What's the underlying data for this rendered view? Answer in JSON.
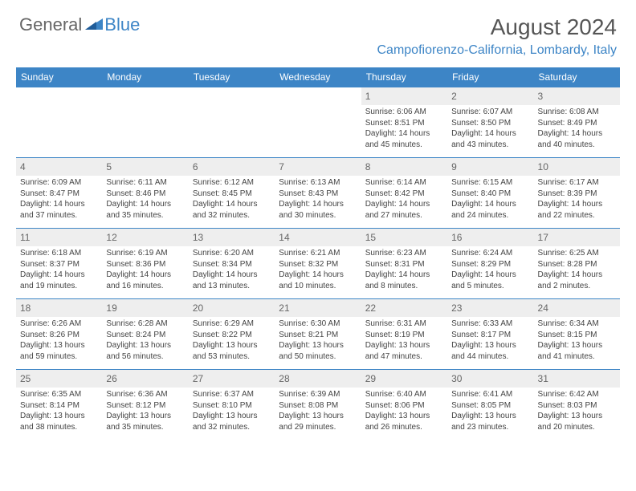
{
  "logo": {
    "general": "General",
    "blue": "Blue"
  },
  "title": "August 2024",
  "location": "Campofiorenzo-California, Lombardy, Italy",
  "colors": {
    "brand": "#3d85c6",
    "header_bg": "#3d85c6",
    "header_text": "#ffffff",
    "daynum_bg": "#eeeeee",
    "text": "#444444",
    "title_text": "#555555"
  },
  "day_headers": [
    "Sunday",
    "Monday",
    "Tuesday",
    "Wednesday",
    "Thursday",
    "Friday",
    "Saturday"
  ],
  "weeks": [
    [
      {
        "n": "",
        "sr": "",
        "ss": "",
        "dl": ""
      },
      {
        "n": "",
        "sr": "",
        "ss": "",
        "dl": ""
      },
      {
        "n": "",
        "sr": "",
        "ss": "",
        "dl": ""
      },
      {
        "n": "",
        "sr": "",
        "ss": "",
        "dl": ""
      },
      {
        "n": "1",
        "sr": "Sunrise: 6:06 AM",
        "ss": "Sunset: 8:51 PM",
        "dl": "Daylight: 14 hours and 45 minutes."
      },
      {
        "n": "2",
        "sr": "Sunrise: 6:07 AM",
        "ss": "Sunset: 8:50 PM",
        "dl": "Daylight: 14 hours and 43 minutes."
      },
      {
        "n": "3",
        "sr": "Sunrise: 6:08 AM",
        "ss": "Sunset: 8:49 PM",
        "dl": "Daylight: 14 hours and 40 minutes."
      }
    ],
    [
      {
        "n": "4",
        "sr": "Sunrise: 6:09 AM",
        "ss": "Sunset: 8:47 PM",
        "dl": "Daylight: 14 hours and 37 minutes."
      },
      {
        "n": "5",
        "sr": "Sunrise: 6:11 AM",
        "ss": "Sunset: 8:46 PM",
        "dl": "Daylight: 14 hours and 35 minutes."
      },
      {
        "n": "6",
        "sr": "Sunrise: 6:12 AM",
        "ss": "Sunset: 8:45 PM",
        "dl": "Daylight: 14 hours and 32 minutes."
      },
      {
        "n": "7",
        "sr": "Sunrise: 6:13 AM",
        "ss": "Sunset: 8:43 PM",
        "dl": "Daylight: 14 hours and 30 minutes."
      },
      {
        "n": "8",
        "sr": "Sunrise: 6:14 AM",
        "ss": "Sunset: 8:42 PM",
        "dl": "Daylight: 14 hours and 27 minutes."
      },
      {
        "n": "9",
        "sr": "Sunrise: 6:15 AM",
        "ss": "Sunset: 8:40 PM",
        "dl": "Daylight: 14 hours and 24 minutes."
      },
      {
        "n": "10",
        "sr": "Sunrise: 6:17 AM",
        "ss": "Sunset: 8:39 PM",
        "dl": "Daylight: 14 hours and 22 minutes."
      }
    ],
    [
      {
        "n": "11",
        "sr": "Sunrise: 6:18 AM",
        "ss": "Sunset: 8:37 PM",
        "dl": "Daylight: 14 hours and 19 minutes."
      },
      {
        "n": "12",
        "sr": "Sunrise: 6:19 AM",
        "ss": "Sunset: 8:36 PM",
        "dl": "Daylight: 14 hours and 16 minutes."
      },
      {
        "n": "13",
        "sr": "Sunrise: 6:20 AM",
        "ss": "Sunset: 8:34 PM",
        "dl": "Daylight: 14 hours and 13 minutes."
      },
      {
        "n": "14",
        "sr": "Sunrise: 6:21 AM",
        "ss": "Sunset: 8:32 PM",
        "dl": "Daylight: 14 hours and 10 minutes."
      },
      {
        "n": "15",
        "sr": "Sunrise: 6:23 AM",
        "ss": "Sunset: 8:31 PM",
        "dl": "Daylight: 14 hours and 8 minutes."
      },
      {
        "n": "16",
        "sr": "Sunrise: 6:24 AM",
        "ss": "Sunset: 8:29 PM",
        "dl": "Daylight: 14 hours and 5 minutes."
      },
      {
        "n": "17",
        "sr": "Sunrise: 6:25 AM",
        "ss": "Sunset: 8:28 PM",
        "dl": "Daylight: 14 hours and 2 minutes."
      }
    ],
    [
      {
        "n": "18",
        "sr": "Sunrise: 6:26 AM",
        "ss": "Sunset: 8:26 PM",
        "dl": "Daylight: 13 hours and 59 minutes."
      },
      {
        "n": "19",
        "sr": "Sunrise: 6:28 AM",
        "ss": "Sunset: 8:24 PM",
        "dl": "Daylight: 13 hours and 56 minutes."
      },
      {
        "n": "20",
        "sr": "Sunrise: 6:29 AM",
        "ss": "Sunset: 8:22 PM",
        "dl": "Daylight: 13 hours and 53 minutes."
      },
      {
        "n": "21",
        "sr": "Sunrise: 6:30 AM",
        "ss": "Sunset: 8:21 PM",
        "dl": "Daylight: 13 hours and 50 minutes."
      },
      {
        "n": "22",
        "sr": "Sunrise: 6:31 AM",
        "ss": "Sunset: 8:19 PM",
        "dl": "Daylight: 13 hours and 47 minutes."
      },
      {
        "n": "23",
        "sr": "Sunrise: 6:33 AM",
        "ss": "Sunset: 8:17 PM",
        "dl": "Daylight: 13 hours and 44 minutes."
      },
      {
        "n": "24",
        "sr": "Sunrise: 6:34 AM",
        "ss": "Sunset: 8:15 PM",
        "dl": "Daylight: 13 hours and 41 minutes."
      }
    ],
    [
      {
        "n": "25",
        "sr": "Sunrise: 6:35 AM",
        "ss": "Sunset: 8:14 PM",
        "dl": "Daylight: 13 hours and 38 minutes."
      },
      {
        "n": "26",
        "sr": "Sunrise: 6:36 AM",
        "ss": "Sunset: 8:12 PM",
        "dl": "Daylight: 13 hours and 35 minutes."
      },
      {
        "n": "27",
        "sr": "Sunrise: 6:37 AM",
        "ss": "Sunset: 8:10 PM",
        "dl": "Daylight: 13 hours and 32 minutes."
      },
      {
        "n": "28",
        "sr": "Sunrise: 6:39 AM",
        "ss": "Sunset: 8:08 PM",
        "dl": "Daylight: 13 hours and 29 minutes."
      },
      {
        "n": "29",
        "sr": "Sunrise: 6:40 AM",
        "ss": "Sunset: 8:06 PM",
        "dl": "Daylight: 13 hours and 26 minutes."
      },
      {
        "n": "30",
        "sr": "Sunrise: 6:41 AM",
        "ss": "Sunset: 8:05 PM",
        "dl": "Daylight: 13 hours and 23 minutes."
      },
      {
        "n": "31",
        "sr": "Sunrise: 6:42 AM",
        "ss": "Sunset: 8:03 PM",
        "dl": "Daylight: 13 hours and 20 minutes."
      }
    ]
  ]
}
